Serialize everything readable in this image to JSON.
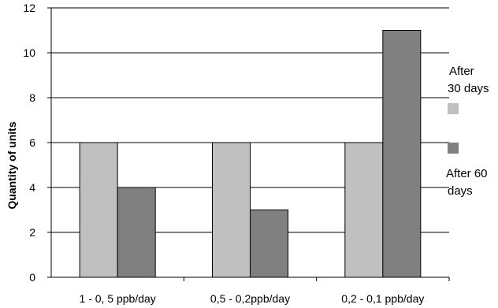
{
  "chart_data": {
    "type": "bar",
    "categories": [
      "1 - 0, 5 ppb/day",
      "0,5 - 0,2ppb/day",
      "0,2 - 0,1 ppb/day"
    ],
    "series": [
      {
        "name": "After 30 days",
        "values": [
          6,
          6,
          6
        ],
        "color": "#c0c0c0"
      },
      {
        "name": "After 60 days",
        "values": [
          4,
          3,
          11
        ],
        "color": "#808080"
      }
    ],
    "ylabel": "Quantity of units",
    "ylim": [
      0,
      12
    ],
    "yticks": [
      0,
      2,
      4,
      6,
      8,
      10,
      12
    ],
    "grid": true,
    "legend_position": "right",
    "legend_text": [
      [
        "After",
        "30 days"
      ],
      [
        "After 60",
        "days"
      ]
    ]
  }
}
